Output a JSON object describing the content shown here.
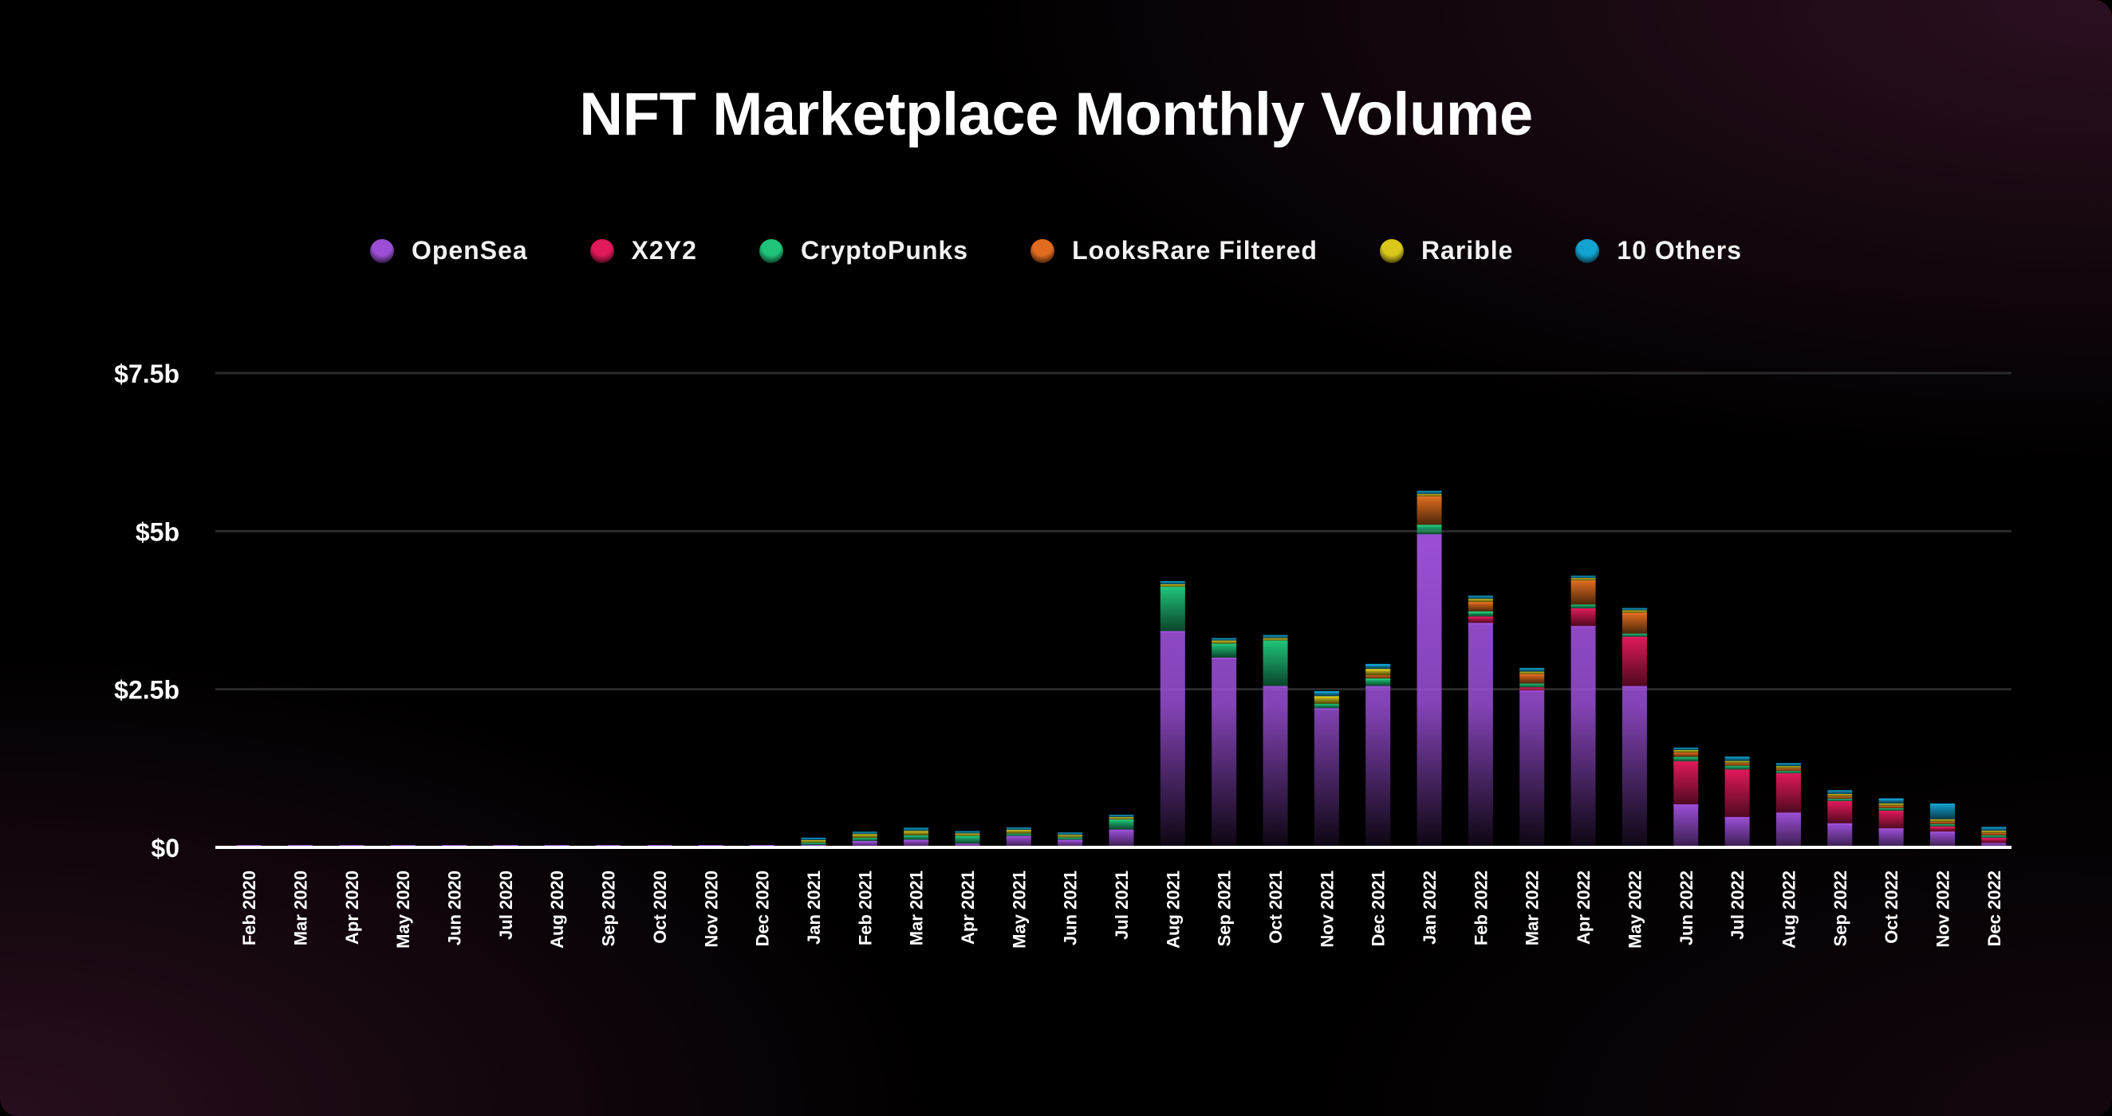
{
  "chart_data": {
    "type": "bar",
    "stacked": true,
    "title": "NFT Marketplace Monthly Volume",
    "xlabel": "",
    "ylabel": "",
    "ylim": [
      0,
      7.5
    ],
    "yticks": [
      {
        "value": 0,
        "label": "$0"
      },
      {
        "value": 2.5,
        "label": "$2.5b"
      },
      {
        "value": 5,
        "label": "$5b"
      },
      {
        "value": 7.5,
        "label": "$7.5b"
      }
    ],
    "grid": true,
    "legend_position": "top-center",
    "categories": [
      "Feb 2020",
      "Mar 2020",
      "Apr 2020",
      "May 2020",
      "Jun 2020",
      "Jul 2020",
      "Aug 2020",
      "Sep 2020",
      "Oct 2020",
      "Nov 2020",
      "Dec 2020",
      "Jan 2021",
      "Feb 2021",
      "Mar 2021",
      "Apr 2021",
      "May 2021",
      "Jun 2021",
      "Jul 2021",
      "Aug 2021",
      "Sep 2021",
      "Oct 2021",
      "Nov 2021",
      "Dec 2021",
      "Jan 2022",
      "Feb 2022",
      "Mar 2022",
      "Apr 2022",
      "May 2022",
      "Jun 2022",
      "Jul 2022",
      "Aug 2022",
      "Sep 2022",
      "Oct 2022",
      "Nov 2022",
      "Dec 2022"
    ],
    "series": [
      {
        "name": "OpenSea",
        "color": "#9B4FD6",
        "values": [
          0.005,
          0.005,
          0.005,
          0.005,
          0.005,
          0.005,
          0.005,
          0.005,
          0.005,
          0.005,
          0.005,
          0.01,
          0.1,
          0.12,
          0.06,
          0.18,
          0.12,
          0.28,
          3.42,
          3.0,
          2.55,
          2.2,
          2.55,
          4.95,
          3.55,
          2.48,
          3.5,
          2.55,
          0.68,
          0.48,
          0.55,
          0.38,
          0.3,
          0.25,
          0.07
        ]
      },
      {
        "name": "X2Y2",
        "color": "#E0195A",
        "values": [
          0,
          0,
          0,
          0,
          0,
          0,
          0,
          0,
          0,
          0,
          0,
          0,
          0,
          0,
          0,
          0,
          0,
          0,
          0,
          0,
          0,
          0,
          0,
          0,
          0.1,
          0.05,
          0.28,
          0.78,
          0.68,
          0.75,
          0.62,
          0.35,
          0.28,
          0.08,
          0.08
        ]
      },
      {
        "name": "CryptoPunks",
        "color": "#1FC47A",
        "values": [
          0,
          0,
          0,
          0,
          0,
          0,
          0,
          0,
          0,
          0,
          0,
          0.02,
          0.05,
          0.07,
          0.12,
          0.02,
          0.02,
          0.16,
          0.7,
          0.22,
          0.72,
          0.07,
          0.12,
          0.15,
          0.08,
          0.06,
          0.06,
          0.05,
          0.07,
          0.06,
          0.03,
          0.03,
          0.02,
          0.02,
          0.02
        ]
      },
      {
        "name": "LooksRare Filtered",
        "color": "#E06D1F",
        "values": [
          0,
          0,
          0,
          0,
          0,
          0,
          0,
          0,
          0,
          0,
          0,
          0,
          0,
          0,
          0,
          0,
          0,
          0,
          0,
          0,
          0,
          0,
          0.05,
          0.45,
          0.15,
          0.15,
          0.38,
          0.33,
          0.07,
          0.03,
          0.02,
          0.02,
          0.01,
          0.01,
          0.01
        ]
      },
      {
        "name": "Rarible",
        "color": "#D9C81A",
        "values": [
          0,
          0,
          0,
          0,
          0,
          0,
          0,
          0,
          0,
          0,
          0,
          0.01,
          0.06,
          0.07,
          0.04,
          0.06,
          0.04,
          0.02,
          0.04,
          0.05,
          0.03,
          0.12,
          0.1,
          0.03,
          0.05,
          0.02,
          0.02,
          0.02,
          0.02,
          0.02,
          0.01,
          0.01,
          0.01,
          0.01,
          0.01
        ]
      },
      {
        "name": "10 Others",
        "color": "#12A3D1",
        "values": [
          0,
          0,
          0,
          0,
          0,
          0,
          0,
          0,
          0,
          0,
          0,
          0.04,
          0.03,
          0.05,
          0.03,
          0.03,
          0.02,
          0.03,
          0.05,
          0.04,
          0.05,
          0.08,
          0.08,
          0.05,
          0.05,
          0.06,
          0.03,
          0.03,
          0.04,
          0.07,
          0.05,
          0.06,
          0.08,
          0.25,
          0.06
        ]
      }
    ]
  }
}
